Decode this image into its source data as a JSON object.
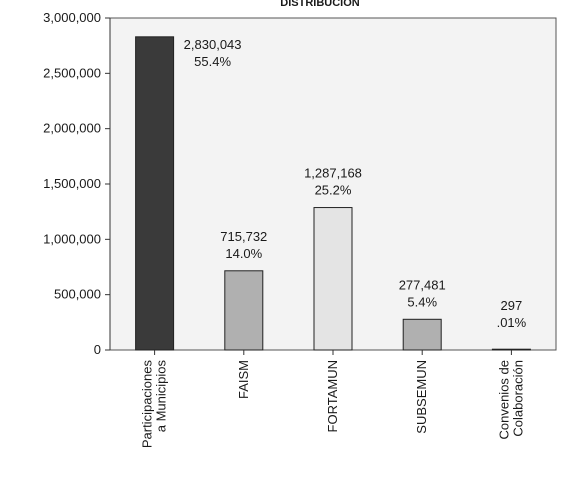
{
  "chart_data": {
    "type": "bar",
    "title": "DISTRIBUCION",
    "categories": [
      "Participaciones a Municipios",
      "FAISM",
      "FORTAMUN",
      "SUBSEMUN",
      "Convenios de Colaboración"
    ],
    "category_lines": [
      [
        "Participaciones",
        "a Municipios"
      ],
      [
        "FAISM"
      ],
      [
        "FORTAMUN"
      ],
      [
        "SUBSEMUN"
      ],
      [
        "Convenios de",
        "Colaboración"
      ]
    ],
    "values": [
      2830043,
      715732,
      1287168,
      277481,
      297
    ],
    "value_labels": [
      "2,830,043",
      "715,732",
      "1,287,168",
      "277,481",
      "297"
    ],
    "percent_labels": [
      "55.4%",
      "14.0%",
      "25.2%",
      "5.4%",
      ".01%"
    ],
    "bar_colors": [
      "#3a3a3a",
      "#b0b0b0",
      "#e4e4e4",
      "#b0b0b0",
      "#e4e4e4"
    ],
    "ylim": [
      0,
      3000000
    ],
    "yticks": [
      0,
      500000,
      1000000,
      1500000,
      2000000,
      2500000,
      3000000
    ],
    "ytick_labels": [
      "0",
      "500,000",
      "1,000,000",
      "1,500,000",
      "2,000,000",
      "2,500,000",
      "3,000,000"
    ],
    "grid": false,
    "xlabel": "",
    "ylabel": ""
  }
}
